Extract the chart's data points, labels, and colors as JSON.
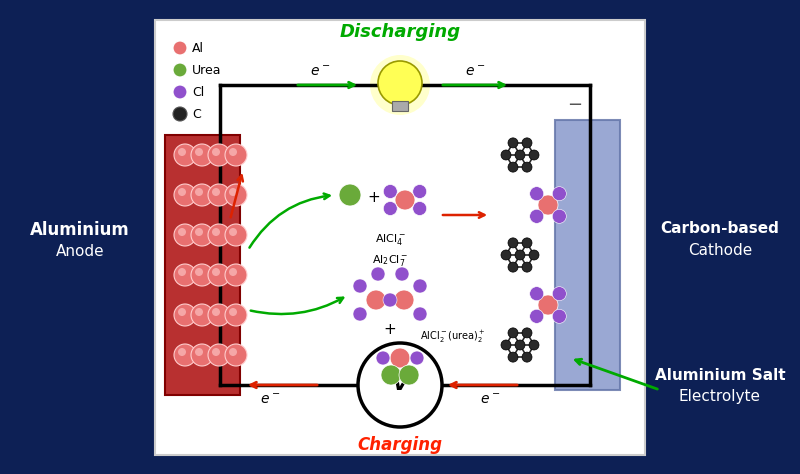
{
  "bg_color": "#0d2055",
  "panel_color": "#ffffff",
  "title": "Discharging",
  "title_color": "#00aa00",
  "title_fontsize": 13,
  "charging_text": "Charging",
  "charging_color": "#ff2200",
  "charging_fontsize": 12,
  "left_label_bold": "Aluminium",
  "left_label_normal": "Anode",
  "right_label_bold": "Carbon-based",
  "right_label_normal": "Cathode",
  "salt_label_bold": "Aluminium Salt",
  "salt_label_normal": "Electrolyte",
  "legend_items": [
    {
      "label": "Al",
      "color": "#e87070"
    },
    {
      "label": "Urea",
      "color": "#6aaa3a"
    },
    {
      "label": "Cl",
      "color": "#9050cc"
    },
    {
      "label": "C",
      "color": "#222222"
    }
  ],
  "al_color": "#e87070",
  "urea_color": "#6aaa3a",
  "cl_color": "#9050cc",
  "c_color": "#333333",
  "green": "#00aa00",
  "red": "#dd2200",
  "black": "#111111"
}
